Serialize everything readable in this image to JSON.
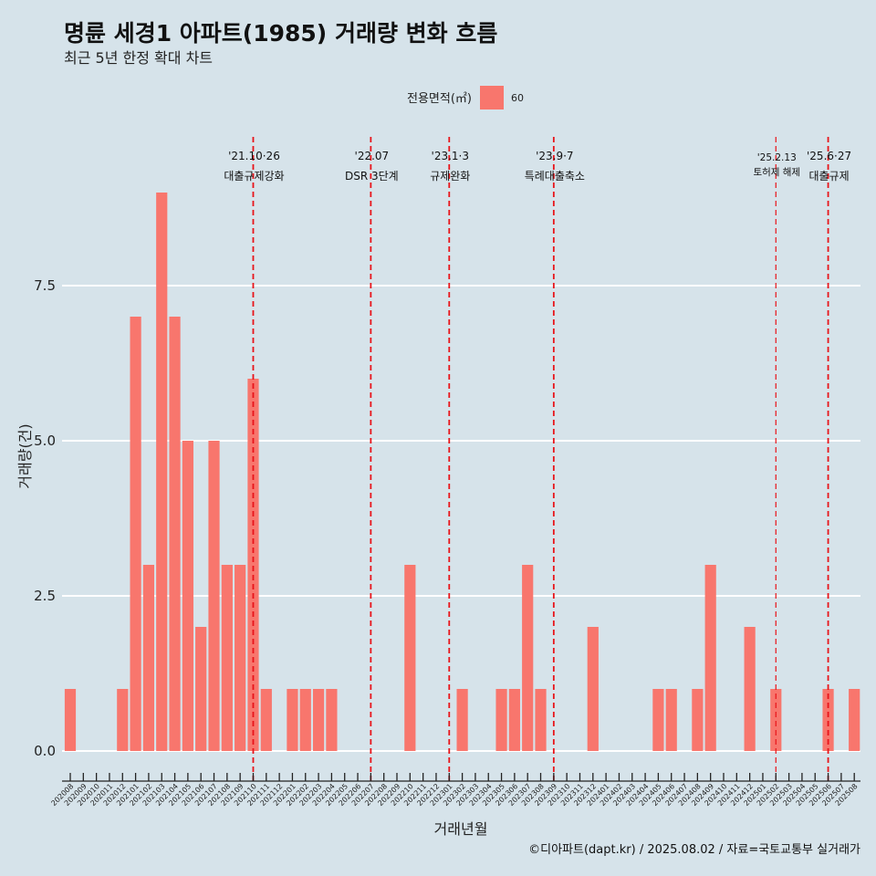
{
  "chart_data": {
    "type": "bar",
    "title": "명륜 세경1 아파트(1985) 거래량 변화 흐름",
    "subtitle": "최근 5년 한정 확대 차트",
    "xlabel": "거래년월",
    "ylabel": "거래량(건)",
    "caption": "©디아파트(dapt.kr) / 2025.08.02 / 자료=국토교통부 실거래가",
    "legend": {
      "title": "전용면적(㎡)",
      "position": "top",
      "items": [
        {
          "label": "60",
          "color": "#f8766d"
        }
      ]
    },
    "ylim": [
      -0.5,
      9.6
    ],
    "yticks": [
      0,
      2.5,
      5,
      7.5
    ],
    "ytick_labels": [
      "0.0",
      "2.5",
      "5.0",
      "7.5"
    ],
    "grid": true,
    "categories": [
      "202008",
      "202009",
      "202010",
      "202011",
      "202012",
      "202101",
      "202102",
      "202103",
      "202104",
      "202105",
      "202106",
      "202107",
      "202108",
      "202109",
      "202110",
      "202111",
      "202112",
      "202201",
      "202202",
      "202203",
      "202204",
      "202205",
      "202206",
      "202207",
      "202208",
      "202209",
      "202210",
      "202211",
      "202212",
      "202301",
      "202302",
      "202303",
      "202304",
      "202305",
      "202306",
      "202307",
      "202308",
      "202309",
      "202310",
      "202311",
      "202312",
      "202401",
      "202402",
      "202403",
      "202404",
      "202405",
      "202406",
      "202407",
      "202408",
      "202409",
      "202410",
      "202411",
      "202412",
      "202501",
      "202502",
      "202503",
      "202504",
      "202505",
      "202506",
      "202507",
      "202508"
    ],
    "series": [
      {
        "name": "60",
        "color": "#f8766d",
        "values": [
          1,
          0,
          0,
          0,
          1,
          7,
          3,
          9,
          7,
          5,
          2,
          5,
          3,
          3,
          6,
          1,
          0,
          1,
          1,
          1,
          1,
          0,
          0,
          0,
          0,
          0,
          3,
          0,
          0,
          0,
          1,
          0,
          0,
          1,
          1,
          3,
          1,
          0,
          0,
          0,
          2,
          0,
          0,
          0,
          0,
          1,
          1,
          0,
          1,
          3,
          0,
          0,
          2,
          0,
          1,
          0,
          0,
          0,
          1,
          0,
          1
        ]
      }
    ],
    "annotations": [
      {
        "x": "202110",
        "lines": [
          "'21.10·26",
          "대출규제강화"
        ],
        "size": "normal"
      },
      {
        "x": "202207",
        "lines": [
          "'22.07",
          "DSR 3단계"
        ],
        "size": "normal"
      },
      {
        "x": "202301",
        "lines": [
          "'23.1·3",
          "규제완화"
        ],
        "size": "normal"
      },
      {
        "x": "202309",
        "lines": [
          "'23.9·7",
          "특례대출축소"
        ],
        "size": "normal"
      },
      {
        "x": "202502",
        "lines": [
          "'25.2.13",
          "토허제 해제"
        ],
        "size": "small"
      },
      {
        "x": "202506",
        "lines": [
          "'25.6·27",
          "대출규제"
        ],
        "size": "normal"
      }
    ],
    "colors": {
      "background": "#d6e3ea",
      "grid": "#ffffff",
      "bar": "#f8766d",
      "event_line": "#e8141a"
    }
  }
}
